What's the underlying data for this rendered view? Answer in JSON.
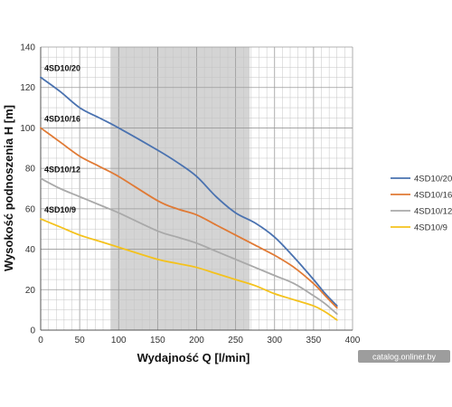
{
  "chart_data": {
    "type": "line",
    "title": "",
    "xlabel": "Wydajność Q [l/min]",
    "ylabel": "Wysokość podnoszenia H [m]",
    "xlim": [
      0,
      400
    ],
    "ylim": [
      0,
      140
    ],
    "x_ticks": [
      0,
      50,
      100,
      150,
      200,
      250,
      300,
      350,
      400
    ],
    "y_ticks": [
      0,
      20,
      40,
      60,
      80,
      100,
      120,
      140
    ],
    "grid": true,
    "highlight_band": {
      "x_from": 90,
      "x_to": 268,
      "color": "#d4d4d4"
    },
    "legend_position": "right",
    "series": [
      {
        "name": "4SD10/20",
        "color": "#4a72b0",
        "x": [
          0,
          25,
          50,
          75,
          100,
          150,
          175,
          200,
          225,
          250,
          275,
          300,
          325,
          350,
          365,
          380
        ],
        "y": [
          125,
          118,
          110,
          105,
          100,
          89,
          83,
          76,
          66,
          58,
          53,
          46,
          36,
          25,
          18,
          12
        ]
      },
      {
        "name": "4SD10/16",
        "color": "#e07a35",
        "x": [
          0,
          25,
          50,
          75,
          100,
          150,
          175,
          200,
          225,
          250,
          275,
          300,
          325,
          350,
          365,
          380
        ],
        "y": [
          100,
          93,
          86,
          81,
          76,
          64,
          60,
          57,
          52,
          47,
          42,
          37,
          31,
          23,
          17,
          11
        ]
      },
      {
        "name": "4SD10/12",
        "color": "#a9a9a9",
        "x": [
          0,
          25,
          50,
          75,
          100,
          150,
          175,
          200,
          225,
          250,
          275,
          300,
          325,
          350,
          365,
          380
        ],
        "y": [
          75,
          70,
          66,
          62,
          58,
          49,
          46,
          43,
          39,
          35,
          31,
          27,
          23,
          17,
          13,
          8
        ]
      },
      {
        "name": "4SD10/9",
        "color": "#f4c21d",
        "x": [
          0,
          25,
          50,
          75,
          100,
          150,
          175,
          200,
          225,
          250,
          275,
          300,
          325,
          350,
          365,
          380
        ],
        "y": [
          55,
          51,
          47,
          44,
          41,
          35,
          33,
          31,
          28,
          25,
          22,
          18,
          15,
          12,
          9,
          5
        ]
      }
    ],
    "curve_labels": [
      "4SD10/20",
      "4SD10/16",
      "4SD10/12",
      "4SD10/9"
    ]
  },
  "watermark": "catalog.onliner.by"
}
